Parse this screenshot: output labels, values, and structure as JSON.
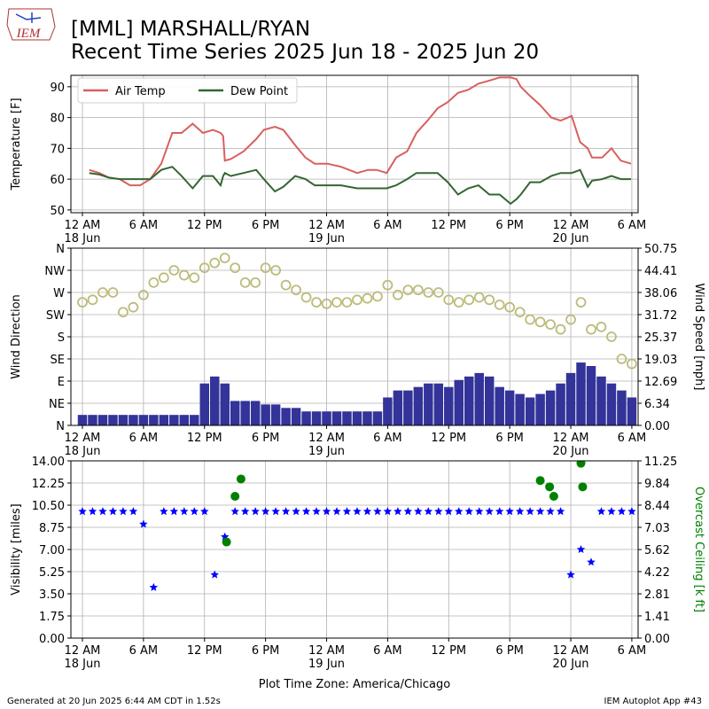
{
  "logo": "IEM",
  "title": [
    "[MML] MARSHALL/RYAN",
    "Recent Time Series 2025 Jun 18 - 2025 Jun 20"
  ],
  "footer": {
    "left": "Generated at 20 Jun 2025 6:44 AM CDT in 1.52s",
    "right": "IEM Autoplot App #43"
  },
  "chart_data": [
    {
      "type": "line",
      "ylabel": "Temperature [F]",
      "grid": true,
      "legend": "upper left",
      "xlim": [
        "2025-06-17 22:52",
        "2025-06-20 06:37"
      ],
      "xticks": [
        {
          "value": "2025-06-18 00:00",
          "label": "12 AM\n18 Jun"
        },
        {
          "value": "2025-06-18 06:00",
          "label": "6 AM"
        },
        {
          "value": "2025-06-18 12:00",
          "label": "12 PM"
        },
        {
          "value": "2025-06-18 18:00",
          "label": "6 PM"
        },
        {
          "value": "2025-06-19 00:00",
          "label": "12 AM\n19 Jun"
        },
        {
          "value": "2025-06-19 06:00",
          "label": "6 AM"
        },
        {
          "value": "2025-06-19 12:00",
          "label": "12 PM"
        },
        {
          "value": "2025-06-19 18:00",
          "label": "6 PM"
        },
        {
          "value": "2025-06-20 00:00",
          "label": "12 AM\n20 Jun"
        },
        {
          "value": "2025-06-20 06:00",
          "label": "6 AM"
        }
      ],
      "ylim": [
        49.1,
        93.7
      ],
      "yticks": [
        50,
        60,
        70,
        80,
        90
      ],
      "x": [
        "2025-06-18 00:40",
        "2025-06-18 01:40",
        "2025-06-18 02:35",
        "2025-06-18 03:40",
        "2025-06-18 04:40",
        "2025-06-18 05:40",
        "2025-06-18 06:40",
        "2025-06-18 07:45",
        "2025-06-18 08:50",
        "2025-06-18 09:45",
        "2025-06-18 10:50",
        "2025-06-18 11:50",
        "2025-06-18 12:50",
        "2025-06-18 13:35",
        "2025-06-18 13:50",
        "2025-06-18 14:00",
        "2025-06-18 14:35",
        "2025-06-18 15:50",
        "2025-06-18 17:05",
        "2025-06-18 17:50",
        "2025-06-18 18:55",
        "2025-06-18 19:45",
        "2025-06-18 20:55",
        "2025-06-18 21:55",
        "2025-06-18 22:50",
        "2025-06-19 00:05",
        "2025-06-19 01:25",
        "2025-06-19 03:00",
        "2025-06-19 04:05",
        "2025-06-19 04:55",
        "2025-06-19 05:55",
        "2025-06-19 06:50",
        "2025-06-19 07:55",
        "2025-06-19 08:50",
        "2025-06-19 09:55",
        "2025-06-19 10:55",
        "2025-06-19 11:55",
        "2025-06-19 12:55",
        "2025-06-19 13:55",
        "2025-06-19 14:55",
        "2025-06-19 16:00",
        "2025-06-19 17:00",
        "2025-06-19 18:05",
        "2025-06-19 18:40",
        "2025-06-19 19:05",
        "2025-06-19 20:00",
        "2025-06-19 21:00",
        "2025-06-19 22:05",
        "2025-06-19 23:00",
        "2025-06-20 00:05",
        "2025-06-20 00:55",
        "2025-06-20 01:40",
        "2025-06-20 02:05",
        "2025-06-20 03:05",
        "2025-06-20 04:00",
        "2025-06-20 04:55",
        "2025-06-20 05:55"
      ],
      "series": [
        {
          "name": "Air Temp",
          "color": "#d9605e",
          "values": [
            63,
            62,
            60.5,
            60,
            58,
            58,
            60,
            65,
            75,
            75,
            78,
            75,
            76,
            75,
            74,
            66,
            66.5,
            69,
            73,
            76,
            77,
            76,
            71,
            67,
            65,
            65,
            64,
            62,
            63,
            63,
            62,
            67,
            69,
            75,
            79,
            83,
            85,
            88,
            89,
            91,
            92,
            93,
            93,
            92.5,
            90,
            87,
            84,
            80,
            79,
            80.5,
            72,
            70,
            67,
            67,
            70,
            66,
            65
          ]
        },
        {
          "name": "Dew Point",
          "color": "#336633",
          "values": [
            62,
            61.5,
            60.5,
            60,
            60,
            60,
            60,
            63,
            64,
            61,
            57,
            61,
            61,
            58,
            61,
            62,
            61,
            62,
            63,
            60,
            56,
            57.5,
            61,
            60,
            58,
            58,
            58,
            57,
            57,
            57,
            57,
            58,
            60,
            62,
            62,
            62,
            59,
            55,
            57,
            58,
            55,
            55,
            52,
            53.5,
            55,
            59,
            59,
            61,
            62,
            62,
            63,
            57.5,
            59.5,
            60,
            61,
            60,
            60
          ]
        }
      ]
    },
    {
      "type": "combo",
      "ylabel": "Wind Direction",
      "y2label": "Wind Speed [mph]",
      "grid": true,
      "xlim": [
        "2025-06-17 22:52",
        "2025-06-20 06:37"
      ],
      "xticks": [
        {
          "value": "2025-06-18 00:00",
          "label": "12 AM\n18 Jun"
        },
        {
          "value": "2025-06-18 06:00",
          "label": "6 AM"
        },
        {
          "value": "2025-06-18 12:00",
          "label": "12 PM"
        },
        {
          "value": "2025-06-18 18:00",
          "label": "6 PM"
        },
        {
          "value": "2025-06-19 00:00",
          "label": "12 AM\n19 Jun"
        },
        {
          "value": "2025-06-19 06:00",
          "label": "6 AM"
        },
        {
          "value": "2025-06-19 12:00",
          "label": "12 PM"
        },
        {
          "value": "2025-06-19 18:00",
          "label": "6 PM"
        },
        {
          "value": "2025-06-20 00:00",
          "label": "12 AM\n20 Jun"
        },
        {
          "value": "2025-06-20 06:00",
          "label": "6 AM"
        }
      ],
      "ylim": [
        0,
        360
      ],
      "yticks": [
        {
          "value": 0,
          "label": "N"
        },
        {
          "value": 45,
          "label": "NE"
        },
        {
          "value": 90,
          "label": "E"
        },
        {
          "value": 135,
          "label": "SE"
        },
        {
          "value": 180,
          "label": "S"
        },
        {
          "value": 225,
          "label": "SW"
        },
        {
          "value": 270,
          "label": "W"
        },
        {
          "value": 315,
          "label": "NW"
        },
        {
          "value": 360,
          "label": "N"
        }
      ],
      "y2lim": [
        0,
        50.75
      ],
      "y2ticks": [
        {
          "value": 0,
          "label": "0.00"
        },
        6.34,
        12.69,
        19.03,
        25.37,
        31.72,
        38.06,
        44.41,
        50.75
      ],
      "x": [
        "2025-06-18 00:00",
        "2025-06-18 01:00",
        "2025-06-18 02:00",
        "2025-06-18 03:00",
        "2025-06-18 04:00",
        "2025-06-18 05:00",
        "2025-06-18 06:00",
        "2025-06-18 07:00",
        "2025-06-18 08:00",
        "2025-06-18 09:00",
        "2025-06-18 10:00",
        "2025-06-18 11:00",
        "2025-06-18 12:00",
        "2025-06-18 13:00",
        "2025-06-18 14:00",
        "2025-06-18 15:00",
        "2025-06-18 16:00",
        "2025-06-18 17:00",
        "2025-06-18 18:00",
        "2025-06-18 19:00",
        "2025-06-18 20:00",
        "2025-06-18 21:00",
        "2025-06-18 22:00",
        "2025-06-18 23:00",
        "2025-06-19 00:00",
        "2025-06-19 01:00",
        "2025-06-19 02:00",
        "2025-06-19 03:00",
        "2025-06-19 04:00",
        "2025-06-19 05:00",
        "2025-06-19 06:00",
        "2025-06-19 07:00",
        "2025-06-19 08:00",
        "2025-06-19 09:00",
        "2025-06-19 10:00",
        "2025-06-19 11:00",
        "2025-06-19 12:00",
        "2025-06-19 13:00",
        "2025-06-19 14:00",
        "2025-06-19 15:00",
        "2025-06-19 16:00",
        "2025-06-19 17:00",
        "2025-06-19 18:00",
        "2025-06-19 19:00",
        "2025-06-19 20:00",
        "2025-06-19 21:00",
        "2025-06-19 22:00",
        "2025-06-19 23:00",
        "2025-06-20 00:00",
        "2025-06-20 01:00",
        "2025-06-20 02:00",
        "2025-06-20 03:00",
        "2025-06-20 04:00",
        "2025-06-20 05:00",
        "2025-06-20 06:00"
      ],
      "series": [
        {
          "kind": "bar",
          "axis": "y2",
          "color": "#333399",
          "values": [
            3,
            3,
            3,
            3,
            3,
            3,
            3,
            3,
            3,
            3,
            3,
            3,
            12,
            14,
            12,
            7,
            7,
            7,
            6,
            6,
            5,
            5,
            4,
            4,
            4,
            4,
            4,
            4,
            4,
            4,
            8,
            10,
            10,
            11,
            12,
            12,
            11,
            13,
            14,
            15,
            14,
            11,
            10,
            9,
            8,
            9,
            10,
            12,
            15,
            18,
            17,
            14,
            12,
            10,
            8
          ]
        },
        {
          "kind": "scatter",
          "marker": "hollow-circle",
          "color": "#bdbb7b",
          "values": [
            250,
            255,
            270,
            270,
            230,
            240,
            265,
            290,
            300,
            315,
            305,
            300,
            320,
            330,
            340,
            320,
            290,
            290,
            320,
            315,
            285,
            275,
            260,
            250,
            247,
            250,
            250,
            255,
            258,
            262,
            285,
            265,
            275,
            275,
            270,
            270,
            255,
            250,
            255,
            260,
            255,
            245,
            240,
            230,
            215,
            210,
            205,
            195,
            215,
            250,
            195,
            200,
            180,
            135,
            125
          ]
        }
      ]
    },
    {
      "type": "combo",
      "ylabel": "Visibility [miles]",
      "y2label": "Overcast Ceiling [k ft]",
      "y2label_color": "#008000",
      "xlabel": "Plot Time Zone: America/Chicago",
      "grid": true,
      "xlim": [
        "2025-06-17 22:52",
        "2025-06-20 06:37"
      ],
      "xticks": [
        {
          "value": "2025-06-18 00:00",
          "label": "12 AM\n18 Jun"
        },
        {
          "value": "2025-06-18 06:00",
          "label": "6 AM"
        },
        {
          "value": "2025-06-18 12:00",
          "label": "12 PM"
        },
        {
          "value": "2025-06-18 18:00",
          "label": "6 PM"
        },
        {
          "value": "2025-06-19 00:00",
          "label": "12 AM\n19 Jun"
        },
        {
          "value": "2025-06-19 06:00",
          "label": "6 AM"
        },
        {
          "value": "2025-06-19 12:00",
          "label": "12 PM"
        },
        {
          "value": "2025-06-19 18:00",
          "label": "6 PM"
        },
        {
          "value": "2025-06-20 00:00",
          "label": "12 AM\n20 Jun"
        },
        {
          "value": "2025-06-20 06:00",
          "label": "6 AM"
        }
      ],
      "ylim": [
        0,
        14
      ],
      "yticks": [
        {
          "value": 0,
          "label": "0.00"
        },
        1.75,
        {
          "value": 3.5,
          "label": "3.50"
        },
        5.25,
        {
          "value": 7,
          "label": "7.00"
        },
        8.75,
        {
          "value": 10.5,
          "label": "10.50"
        },
        12.25,
        {
          "value": 14,
          "label": "14.00"
        }
      ],
      "y2lim": [
        0,
        11.25
      ],
      "y2ticks": [
        {
          "value": 0,
          "label": "0.00"
        },
        1.41,
        2.81,
        4.22,
        5.62,
        7.03,
        8.44,
        9.84,
        11.25
      ],
      "series": [
        {
          "kind": "scatter",
          "marker": "star",
          "color": "#0000ff",
          "x": [
            "2025-06-18 00:00",
            "2025-06-18 01:00",
            "2025-06-18 02:00",
            "2025-06-18 03:00",
            "2025-06-18 04:00",
            "2025-06-18 05:00",
            "2025-06-18 06:00",
            "2025-06-18 07:00",
            "2025-06-18 08:00",
            "2025-06-18 09:00",
            "2025-06-18 10:00",
            "2025-06-18 11:00",
            "2025-06-18 12:00",
            "2025-06-18 13:00",
            "2025-06-18 14:00",
            "2025-06-18 15:00",
            "2025-06-18 16:00",
            "2025-06-18 17:00",
            "2025-06-18 18:00",
            "2025-06-18 19:00",
            "2025-06-18 20:00",
            "2025-06-18 21:00",
            "2025-06-18 22:00",
            "2025-06-18 23:00",
            "2025-06-19 00:00",
            "2025-06-19 01:00",
            "2025-06-19 02:00",
            "2025-06-19 03:00",
            "2025-06-19 04:00",
            "2025-06-19 05:00",
            "2025-06-19 06:00",
            "2025-06-19 07:00",
            "2025-06-19 08:00",
            "2025-06-19 09:00",
            "2025-06-19 10:00",
            "2025-06-19 11:00",
            "2025-06-19 12:00",
            "2025-06-19 13:00",
            "2025-06-19 14:00",
            "2025-06-19 15:00",
            "2025-06-19 16:00",
            "2025-06-19 17:00",
            "2025-06-19 18:00",
            "2025-06-19 19:00",
            "2025-06-19 20:00",
            "2025-06-19 21:00",
            "2025-06-19 22:00",
            "2025-06-19 23:00",
            "2025-06-20 00:00",
            "2025-06-20 01:00",
            "2025-06-20 02:00",
            "2025-06-20 03:00",
            "2025-06-20 04:00",
            "2025-06-20 05:00",
            "2025-06-20 06:00"
          ],
          "values": [
            10,
            10,
            10,
            10,
            10,
            10,
            9,
            4,
            10,
            10,
            10,
            10,
            10,
            5,
            8,
            10,
            10,
            10,
            10,
            10,
            10,
            10,
            10,
            10,
            10,
            10,
            10,
            10,
            10,
            10,
            10,
            10,
            10,
            10,
            10,
            10,
            10,
            10,
            10,
            10,
            10,
            10,
            10,
            10,
            10,
            10,
            10,
            10,
            5,
            7,
            6,
            10,
            10,
            10,
            10
          ]
        },
        {
          "kind": "scatter",
          "marker": "circle",
          "color": "#008000",
          "axis": "y2",
          "x": [
            "2025-06-18 14:10",
            "2025-06-18 15:00",
            "2025-06-18 15:35",
            "2025-06-19 21:00",
            "2025-06-19 21:55",
            "2025-06-19 22:20",
            "2025-06-20 01:00",
            "2025-06-20 01:10"
          ],
          "values": [
            6.1,
            9.0,
            10.1,
            10.0,
            9.6,
            9.0,
            11.1,
            9.6
          ]
        }
      ]
    }
  ]
}
